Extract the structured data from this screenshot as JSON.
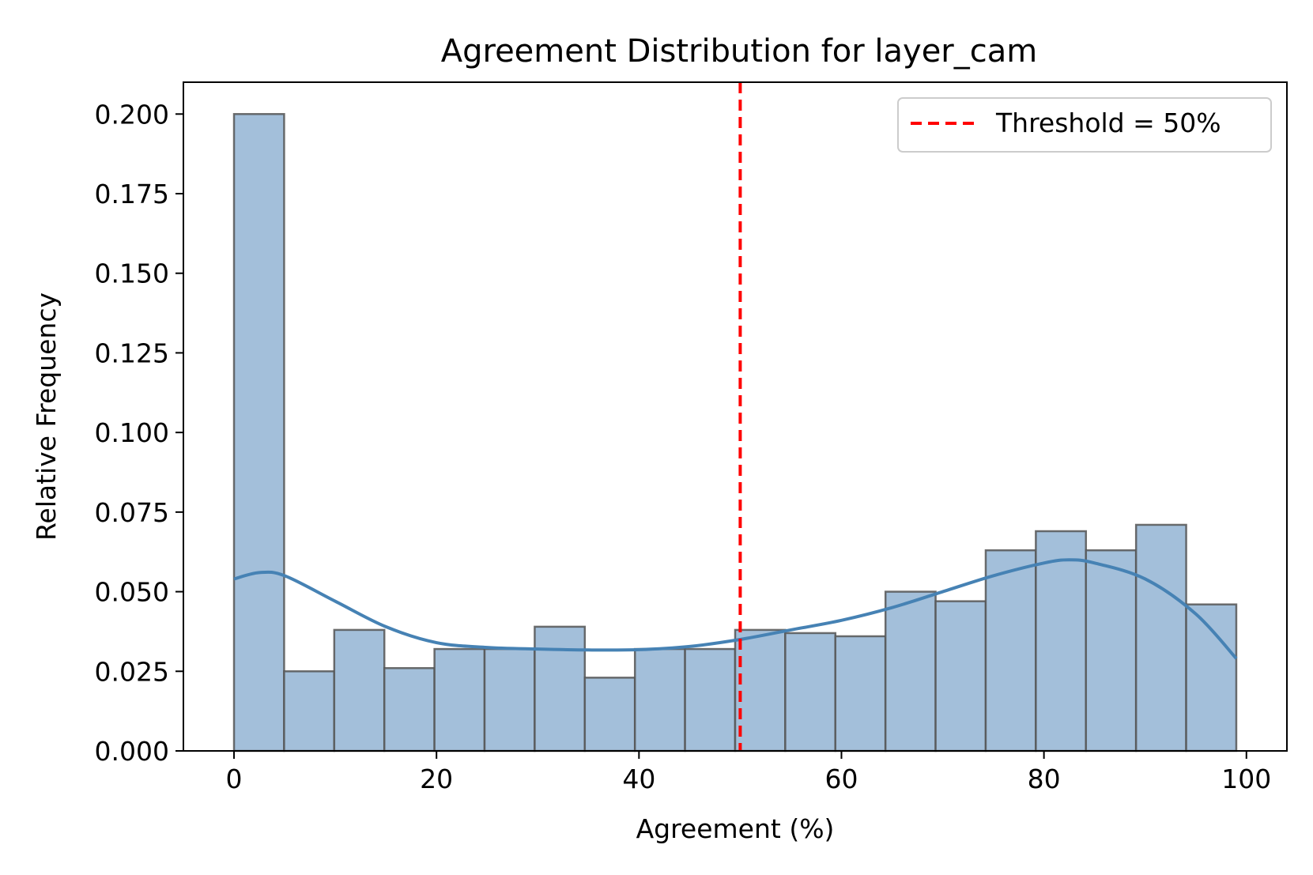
{
  "chart_data": {
    "type": "bar",
    "title": "Agreement Distribution for layer_cam",
    "xlabel": "Agreement (%)",
    "ylabel": "Relative Frequency",
    "xlim": [
      -5,
      104
    ],
    "ylim": [
      0,
      0.21
    ],
    "xticks": [
      0,
      20,
      40,
      60,
      80,
      100
    ],
    "xtick_labels": [
      "0",
      "20",
      "40",
      "60",
      "80",
      "100"
    ],
    "yticks": [
      0,
      0.025,
      0.05,
      0.075,
      0.1,
      0.125,
      0.15,
      0.175,
      0.2
    ],
    "ytick_labels": [
      "0.000",
      "0.025",
      "0.050",
      "0.075",
      "0.100",
      "0.125",
      "0.150",
      "0.175",
      "0.200"
    ],
    "grid": false,
    "legend_position": "top-right",
    "bin_edges": [
      0,
      4.95,
      9.9,
      14.85,
      19.8,
      24.75,
      29.7,
      34.65,
      39.6,
      44.55,
      49.5,
      54.45,
      59.4,
      64.35,
      69.3,
      74.25,
      79.2,
      84.15,
      89.1,
      94.05,
      99.0
    ],
    "values": [
      0.2,
      0.025,
      0.038,
      0.026,
      0.032,
      0.032,
      0.039,
      0.023,
      0.032,
      0.032,
      0.038,
      0.037,
      0.036,
      0.05,
      0.047,
      0.063,
      0.069,
      0.063,
      0.071,
      0.046
    ],
    "kde": {
      "x": [
        0,
        2.5,
        5,
        10,
        15,
        20,
        25,
        30,
        35,
        40,
        45,
        50,
        55,
        60,
        65,
        70,
        75,
        80,
        82.5,
        85,
        90,
        95,
        99
      ],
      "y": [
        0.054,
        0.056,
        0.055,
        0.047,
        0.039,
        0.034,
        0.0325,
        0.032,
        0.0317,
        0.0318,
        0.0328,
        0.035,
        0.038,
        0.041,
        0.045,
        0.05,
        0.055,
        0.059,
        0.06,
        0.059,
        0.054,
        0.043,
        0.029
      ]
    },
    "threshold": {
      "x": 50,
      "label": "Threshold = 50%",
      "color": "#ff0000"
    },
    "colors": {
      "bar_fill": "#a3bfda",
      "bar_edge": "#555555",
      "kde_line": "#4682b4"
    }
  }
}
